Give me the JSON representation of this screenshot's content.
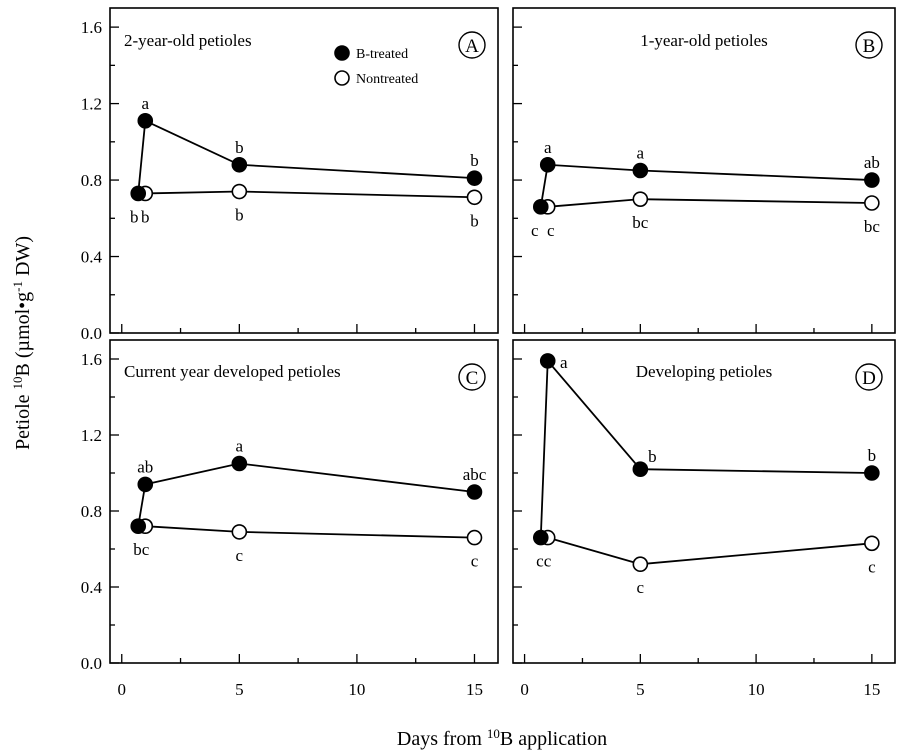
{
  "chart_data": [
    {
      "type": "line",
      "panel_letter": "A",
      "title": "2-year-old petioles",
      "legend": {
        "placement": "top-center",
        "entries": [
          {
            "name": "B-treated",
            "marker": "filled-circle"
          },
          {
            "name": "Nontreated",
            "marker": "open-circle"
          }
        ]
      },
      "ylim": [
        0,
        1.7
      ],
      "xlim": [
        -0.5,
        16
      ],
      "series": [
        {
          "name": "B-treated",
          "x": [
            0.7,
            1,
            5,
            15
          ],
          "y": [
            0.73,
            1.11,
            0.88,
            0.81
          ],
          "labels": [
            "b",
            "a",
            "b",
            "b"
          ]
        },
        {
          "name": "Nontreated",
          "x": [
            1,
            5,
            15
          ],
          "y": [
            0.73,
            0.74,
            0.71
          ],
          "labels": [
            "b",
            "b",
            "b"
          ]
        }
      ]
    },
    {
      "type": "line",
      "panel_letter": "B",
      "title": "1-year-old petioles",
      "ylim": [
        0,
        1.7
      ],
      "xlim": [
        -0.5,
        16
      ],
      "series": [
        {
          "name": "B-treated",
          "x": [
            0.7,
            1,
            5,
            15
          ],
          "y": [
            0.66,
            0.88,
            0.85,
            0.8
          ],
          "labels": [
            "c",
            "a",
            "a",
            "ab"
          ]
        },
        {
          "name": "Nontreated",
          "x": [
            1,
            5,
            15
          ],
          "y": [
            0.66,
            0.7,
            0.68
          ],
          "labels": [
            "c",
            "bc",
            "bc"
          ]
        }
      ]
    },
    {
      "type": "line",
      "panel_letter": "C",
      "title": "Current year developed petioles",
      "ylim": [
        0,
        1.7
      ],
      "xlim": [
        -0.5,
        16
      ],
      "series": [
        {
          "name": "B-treated",
          "x": [
            0.7,
            1,
            5,
            15
          ],
          "y": [
            0.72,
            0.94,
            1.05,
            0.9
          ],
          "labels": [
            "",
            "ab",
            "a",
            "abc"
          ]
        },
        {
          "name": "Nontreated",
          "x": [
            1,
            5,
            15
          ],
          "y": [
            0.72,
            0.69,
            0.66
          ],
          "labels": [
            "bc",
            "c",
            "c"
          ]
        }
      ]
    },
    {
      "type": "line",
      "panel_letter": "D",
      "title": "Developing petioles",
      "ylim": [
        0,
        1.7
      ],
      "xlim": [
        -0.5,
        16
      ],
      "series": [
        {
          "name": "B-treated",
          "x": [
            0.7,
            1,
            5,
            15
          ],
          "y": [
            0.66,
            1.59,
            1.02,
            1.0
          ],
          "labels": [
            "",
            "a",
            "b",
            "b"
          ]
        },
        {
          "name": "Nontreated",
          "x": [
            1,
            5,
            15
          ],
          "y": [
            0.66,
            0.52,
            0.63
          ],
          "labels": [
            "cc",
            "c",
            "c"
          ]
        }
      ]
    }
  ],
  "axes": {
    "y_ticks": [
      "0.0",
      "0.4",
      "0.8",
      "1.2",
      "1.6"
    ],
    "x_ticks": [
      "0",
      "5",
      "10",
      "15"
    ],
    "ylabel": {
      "pre": "Petiole ",
      "sup1": "10",
      "mid": "B (µmol•g",
      "sup2": "-1",
      "post": " DW)"
    },
    "xlabel": {
      "pre": "Days from ",
      "sup": "10",
      "post": "B application"
    }
  }
}
